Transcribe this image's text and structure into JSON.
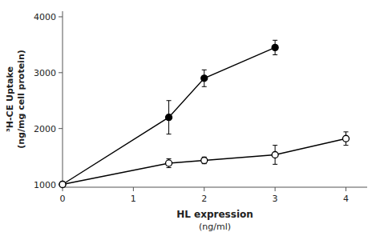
{
  "chart_data": {
    "type": "line",
    "xlabel": "HL expression\n(ng/ml)",
    "ylabel": "³H-CE Uptake\n(ng/mg cell protein)",
    "xlim": [
      0,
      4.3
    ],
    "ylim": [
      950,
      4100
    ],
    "xticks": [
      0,
      1,
      2,
      3,
      4
    ],
    "yticks": [
      1000,
      2000,
      3000,
      4000
    ],
    "grid": false,
    "series": [
      {
        "x": [
          0,
          1.5,
          2,
          3
        ],
        "values": [
          1000,
          2200,
          2900,
          3450
        ],
        "errors": [
          0,
          300,
          150,
          130
        ],
        "color": "#000000",
        "marker": "filled-circle",
        "line_style": "solid"
      },
      {
        "x": [
          0,
          1.5,
          2,
          3,
          4
        ],
        "values": [
          1000,
          1380,
          1430,
          1530,
          1820
        ],
        "errors": [
          0,
          80,
          60,
          170,
          120
        ],
        "color": "#000000",
        "marker": "open-circle",
        "line_style": "solid"
      }
    ]
  }
}
